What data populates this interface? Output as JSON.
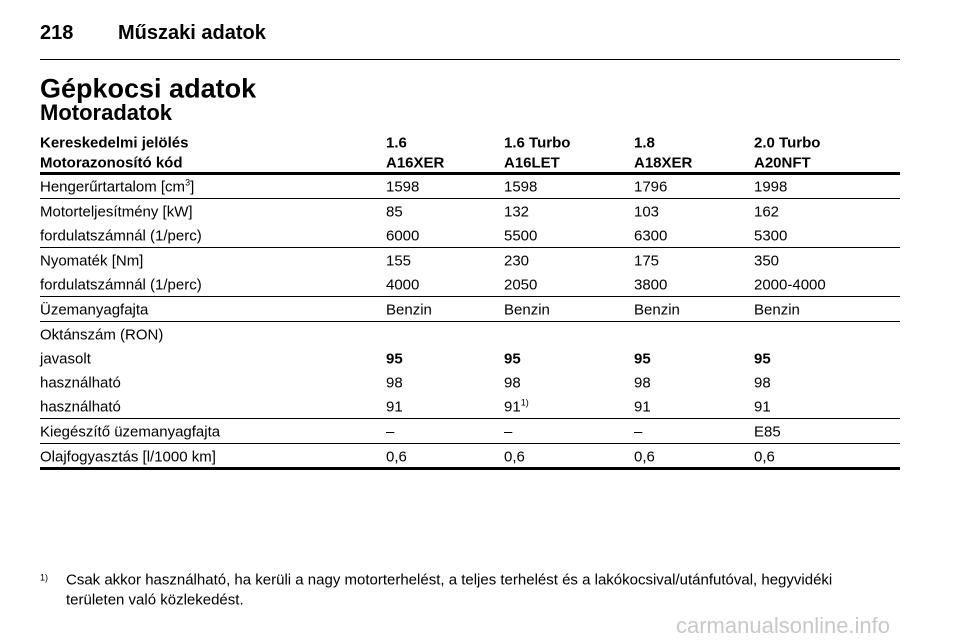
{
  "header": {
    "page_number": "218",
    "section": "Műszaki adatok"
  },
  "title": "Gépkocsi adatok",
  "subtitle": "Motoradatok",
  "table": {
    "header_rows": [
      [
        "Kereskedelmi jelölés",
        "1.6",
        "1.6 Turbo",
        "1.8",
        "2.0 Turbo"
      ],
      [
        "Motorazonosító kód",
        "A16XER",
        "A16LET",
        "A18XER",
        "A20NFT"
      ]
    ],
    "groups": [
      [
        {
          "cells": [
            {
              "text": "Hengerűrtartalom [cm",
              "sup": "3",
              "after": "]"
            },
            "1598",
            "1598",
            "1796",
            "1998"
          ]
        }
      ],
      [
        {
          "cells": [
            "Motorteljesítmény [kW]",
            "85",
            "132",
            "103",
            "162"
          ]
        },
        {
          "cells": [
            "fordulatszámnál (1/perc)",
            "6000",
            "5500",
            "6300",
            "5300"
          ]
        }
      ],
      [
        {
          "cells": [
            "Nyomaték [Nm]",
            "155",
            "230",
            "175",
            "350"
          ]
        },
        {
          "cells": [
            "fordulatszámnál (1/perc)",
            "4000",
            "2050",
            "3800",
            "2000-4000"
          ]
        }
      ],
      [
        {
          "cells": [
            "Üzemanyagfajta",
            "Benzin",
            "Benzin",
            "Benzin",
            "Benzin"
          ]
        }
      ],
      [
        {
          "cells": [
            "Oktánszám (RON)"
          ]
        },
        {
          "cells": [
            "javasolt",
            "95",
            "95",
            "95",
            "95"
          ],
          "bold_values": true
        },
        {
          "cells": [
            "használható",
            "98",
            "98",
            "98",
            "98"
          ]
        },
        {
          "cells": [
            "használható",
            "91",
            {
              "text": "91",
              "sup": "1)"
            },
            "91",
            "91"
          ]
        }
      ],
      [
        {
          "cells": [
            "Kiegészítő üzemanyagfajta",
            "–",
            "–",
            "–",
            "E85"
          ]
        }
      ],
      [
        {
          "cells": [
            "Olajfogyasztás [l/1000 km]",
            "0,6",
            "0,6",
            "0,6",
            "0,6"
          ]
        }
      ]
    ]
  },
  "footnote": {
    "marker": "1)",
    "lines": [
      "Csak akkor használható, ha kerüli a nagy motorterhelést, a teljes terhelést és a lakókocsival/utánfutóval, hegyvidéki",
      "területen való közlekedést."
    ]
  },
  "watermark": "carmanualsonline.info"
}
